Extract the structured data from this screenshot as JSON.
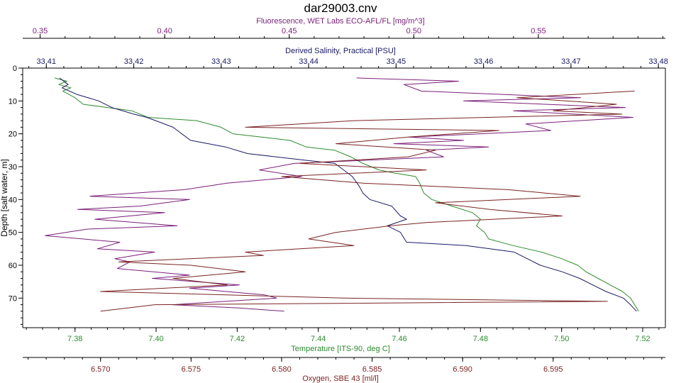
{
  "chart_data": {
    "type": "line",
    "title": "dar29003.cnv",
    "y_axis": {
      "label": "Depth [salt water, m]",
      "range": [
        0,
        79
      ],
      "inverted": true,
      "ticks": [
        0,
        10,
        20,
        30,
        40,
        50,
        60,
        70
      ],
      "tick_labels": [
        "0",
        "10",
        "20",
        "30",
        "40",
        "50",
        "60",
        "70"
      ]
    },
    "x_axes": [
      {
        "key": "fluorescence",
        "label": "Fluorescence, WET Labs ECO-AFL/FL [mg/m^3]",
        "position": "top",
        "range": [
          0.343,
          0.601
        ],
        "ticks": [
          0.35,
          0.4,
          0.45,
          0.5,
          0.55
        ],
        "tick_labels": [
          "0.35",
          "0.40",
          "0.45",
          "0.50",
          "0.55"
        ],
        "color": "#7a1f7a"
      },
      {
        "key": "salinity",
        "label": "Derived Salinity, Practical [PSU]",
        "position": "top",
        "range": [
          33.4073,
          33.4808
        ],
        "ticks": [
          33.41,
          33.42,
          33.43,
          33.44,
          33.45,
          33.46,
          33.47,
          33.48
        ],
        "tick_labels": [
          "33.41",
          "33.42",
          "33.43",
          "33.44",
          "33.45",
          "33.46",
          "33.47",
          "33.48"
        ],
        "color": "#1a1a66"
      },
      {
        "key": "temperature",
        "label": "Temperature [ITS-90, deg C]",
        "position": "bottom",
        "range": [
          7.3671,
          7.5256
        ],
        "ticks": [
          7.38,
          7.4,
          7.42,
          7.44,
          7.46,
          7.48,
          7.5,
          7.52
        ],
        "tick_labels": [
          "7.38",
          "7.40",
          "7.42",
          "7.44",
          "7.46",
          "7.48",
          "7.50",
          "7.52"
        ],
        "color": "#2e8b2e"
      },
      {
        "key": "oxygen",
        "label": "Oxygen, SBE 43 [ml/l]",
        "position": "bottom",
        "range": [
          6.5657,
          6.6012
        ],
        "ticks": [
          6.57,
          6.575,
          6.58,
          6.585,
          6.59,
          6.595
        ],
        "tick_labels": [
          "6.570",
          "6.575",
          "6.580",
          "6.585",
          "6.590",
          "6.595"
        ],
        "color": "#7a2323"
      }
    ],
    "series": [
      {
        "key": "temperature",
        "color": "#2e8b2e",
        "points": [
          [
            7.375,
            3
          ],
          [
            7.378,
            4
          ],
          [
            7.376,
            5
          ],
          [
            7.379,
            6
          ],
          [
            7.377,
            7
          ],
          [
            7.38,
            9
          ],
          [
            7.382,
            11
          ],
          [
            7.388,
            12
          ],
          [
            7.394,
            13
          ],
          [
            7.398,
            15
          ],
          [
            7.41,
            16
          ],
          [
            7.416,
            18
          ],
          [
            7.419,
            20
          ],
          [
            7.426,
            21
          ],
          [
            7.433,
            22
          ],
          [
            7.437,
            24
          ],
          [
            7.444,
            25
          ],
          [
            7.448,
            27
          ],
          [
            7.451,
            29
          ],
          [
            7.455,
            31
          ],
          [
            7.459,
            32
          ],
          [
            7.464,
            33
          ],
          [
            7.465,
            35
          ],
          [
            7.466,
            38
          ],
          [
            7.468,
            40
          ],
          [
            7.473,
            42
          ],
          [
            7.478,
            44
          ],
          [
            7.48,
            46
          ],
          [
            7.479,
            48
          ],
          [
            7.481,
            50
          ],
          [
            7.482,
            52
          ],
          [
            7.488,
            54
          ],
          [
            7.495,
            56
          ],
          [
            7.5,
            58
          ],
          [
            7.504,
            60
          ],
          [
            7.506,
            62
          ],
          [
            7.509,
            64
          ],
          [
            7.512,
            66
          ],
          [
            7.515,
            68
          ],
          [
            7.517,
            70
          ],
          [
            7.518,
            72
          ],
          [
            7.519,
            74
          ]
        ]
      },
      {
        "key": "salinity",
        "color": "#1a1a66",
        "points": [
          [
            33.4115,
            3
          ],
          [
            33.4125,
            5
          ],
          [
            33.4118,
            6
          ],
          [
            33.4135,
            8
          ],
          [
            33.416,
            10
          ],
          [
            33.4175,
            12
          ],
          [
            33.42,
            14
          ],
          [
            33.4215,
            15
          ],
          [
            33.4245,
            18
          ],
          [
            33.4255,
            20
          ],
          [
            33.4265,
            22
          ],
          [
            33.4305,
            24
          ],
          [
            33.433,
            26
          ],
          [
            33.4395,
            28
          ],
          [
            33.443,
            29
          ],
          [
            33.444,
            31
          ],
          [
            33.445,
            33
          ],
          [
            33.4458,
            36
          ],
          [
            33.4462,
            38
          ],
          [
            33.447,
            40
          ],
          [
            33.4495,
            42
          ],
          [
            33.4505,
            45
          ],
          [
            33.4512,
            46
          ],
          [
            33.449,
            48
          ],
          [
            33.4505,
            50
          ],
          [
            33.4512,
            53
          ],
          [
            33.458,
            54
          ],
          [
            33.4635,
            56
          ],
          [
            33.465,
            58
          ],
          [
            33.4665,
            60
          ],
          [
            33.469,
            62
          ],
          [
            33.471,
            64
          ],
          [
            33.4725,
            66
          ],
          [
            33.474,
            68
          ],
          [
            33.476,
            70
          ],
          [
            33.4768,
            72
          ],
          [
            33.4775,
            74
          ]
        ]
      },
      {
        "key": "fluorescence",
        "color": "#7a1f7a",
        "points": [
          [
            0.477,
            3
          ],
          [
            0.518,
            4
          ],
          [
            0.496,
            5
          ],
          [
            0.503,
            7
          ],
          [
            0.567,
            9
          ],
          [
            0.52,
            10
          ],
          [
            0.585,
            12
          ],
          [
            0.54,
            13
          ],
          [
            0.588,
            15
          ],
          [
            0.545,
            17
          ],
          [
            0.555,
            19
          ],
          [
            0.498,
            21
          ],
          [
            0.52,
            22
          ],
          [
            0.492,
            23
          ],
          [
            0.53,
            24
          ],
          [
            0.505,
            25
          ],
          [
            0.512,
            27
          ],
          [
            0.452,
            29
          ],
          [
            0.438,
            31
          ],
          [
            0.455,
            33
          ],
          [
            0.425,
            35
          ],
          [
            0.408,
            37
          ],
          [
            0.37,
            39
          ],
          [
            0.41,
            40
          ],
          [
            0.39,
            42
          ],
          [
            0.365,
            43
          ],
          [
            0.4,
            44
          ],
          [
            0.372,
            46
          ],
          [
            0.405,
            48
          ],
          [
            0.369,
            49
          ],
          [
            0.352,
            51
          ],
          [
            0.382,
            53
          ],
          [
            0.373,
            55
          ],
          [
            0.396,
            56
          ],
          [
            0.38,
            58
          ],
          [
            0.386,
            59
          ],
          [
            0.381,
            61
          ],
          [
            0.41,
            63
          ],
          [
            0.395,
            64
          ],
          [
            0.43,
            66
          ],
          [
            0.41,
            67
          ],
          [
            0.44,
            69
          ],
          [
            0.445,
            70
          ],
          [
            0.403,
            72
          ],
          [
            0.43,
            73
          ],
          [
            0.448,
            74
          ]
        ]
      },
      {
        "key": "oxygen",
        "color": "#7a2323",
        "points": [
          [
            6.5995,
            7
          ],
          [
            6.593,
            9
          ],
          [
            6.5985,
            11
          ],
          [
            6.595,
            13
          ],
          [
            6.5988,
            14
          ],
          [
            6.584,
            16
          ],
          [
            6.578,
            18
          ],
          [
            6.592,
            19
          ],
          [
            6.587,
            21
          ],
          [
            6.583,
            23
          ],
          [
            6.5885,
            25
          ],
          [
            6.587,
            27
          ],
          [
            6.581,
            29
          ],
          [
            6.588,
            31
          ],
          [
            6.58,
            33
          ],
          [
            6.5845,
            35
          ],
          [
            6.5925,
            37
          ],
          [
            6.5965,
            39
          ],
          [
            6.5885,
            41
          ],
          [
            6.5915,
            43
          ],
          [
            6.5955,
            45
          ],
          [
            6.588,
            47
          ],
          [
            6.586,
            48
          ],
          [
            6.583,
            50
          ],
          [
            6.5815,
            52
          ],
          [
            6.584,
            54
          ],
          [
            6.578,
            56
          ],
          [
            6.579,
            57
          ],
          [
            6.571,
            59
          ],
          [
            6.575,
            60
          ],
          [
            6.578,
            62
          ],
          [
            6.574,
            64
          ],
          [
            6.577,
            66
          ],
          [
            6.57,
            68
          ],
          [
            6.5835,
            70
          ],
          [
            6.598,
            71
          ],
          [
            6.573,
            72
          ],
          [
            6.57,
            74
          ]
        ]
      }
    ]
  }
}
